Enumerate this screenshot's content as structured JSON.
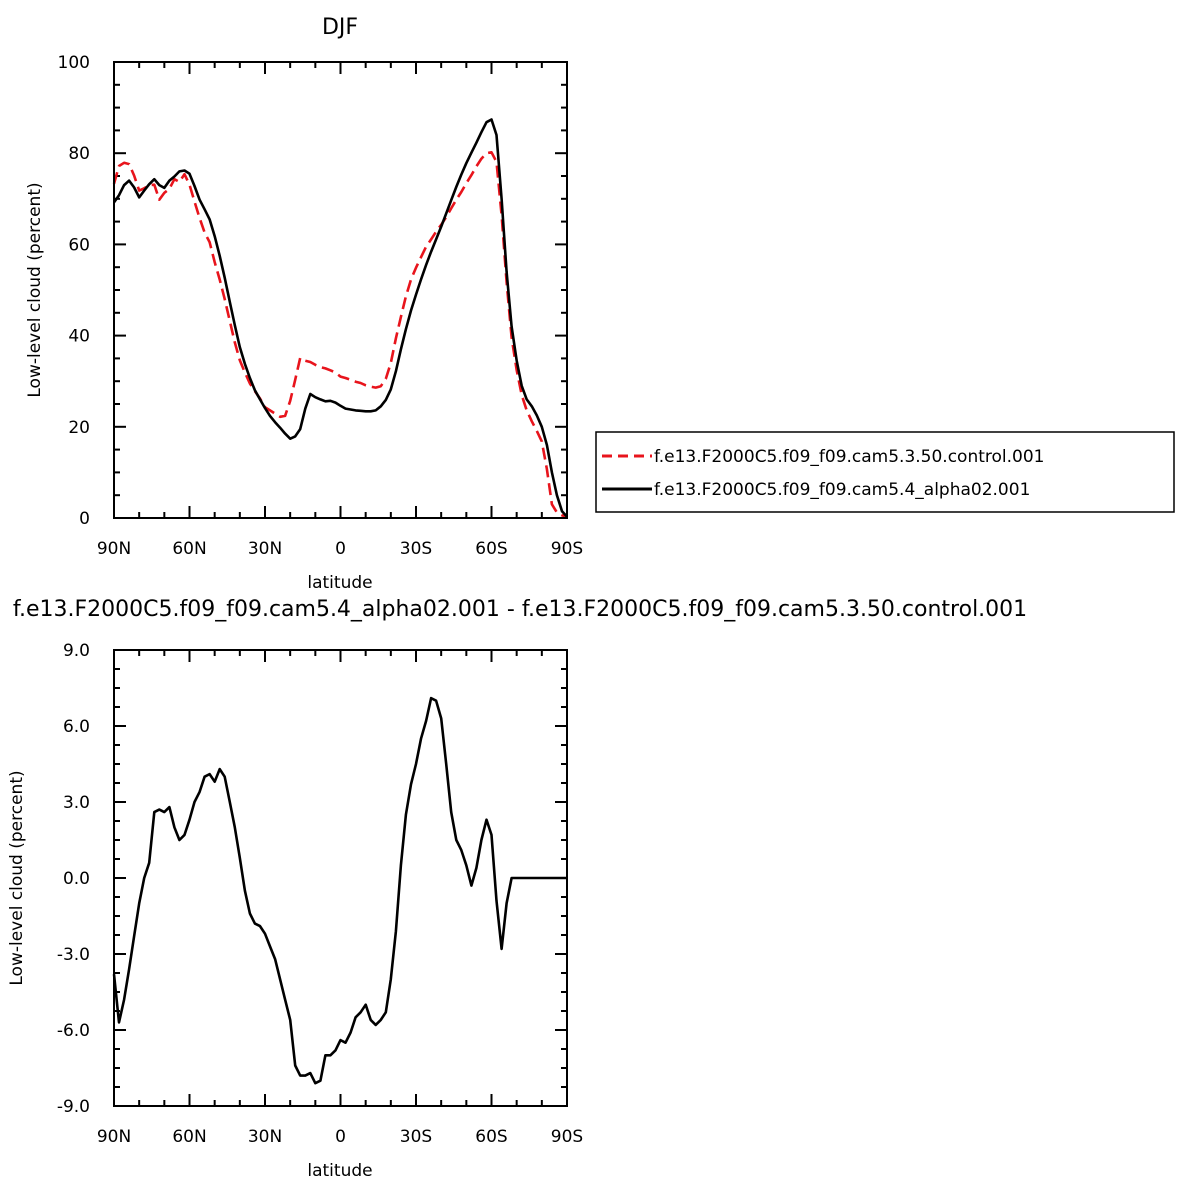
{
  "chart_data": [
    {
      "type": "line",
      "title": "DJF",
      "xlabel": "latitude",
      "ylabel": "Low-level cloud (percent)",
      "xlim": [
        90,
        -90
      ],
      "ylim": [
        0,
        100
      ],
      "xticks": [
        90,
        60,
        30,
        0,
        -30,
        -60,
        -90
      ],
      "xtick_labels": [
        "90N",
        "60N",
        "30N",
        "0",
        "30S",
        "60S",
        "90S"
      ],
      "yticks": [
        0,
        20,
        40,
        60,
        80,
        100
      ],
      "ytick_labels": [
        "0",
        "20",
        "40",
        "60",
        "80",
        "100"
      ],
      "legend": "right",
      "series": [
        {
          "name": "f.e13.F2000C5.f09_f09.cam5.3.50.control.001",
          "color": "#e8141c",
          "dash": "dashed",
          "x": [
            90,
            88,
            86,
            84,
            82,
            80,
            78,
            76,
            74,
            72,
            70,
            68,
            66,
            64,
            62,
            60,
            58,
            56,
            54,
            52,
            50,
            48,
            46,
            44,
            42,
            40,
            38,
            36,
            34,
            32,
            30,
            28,
            26,
            24,
            22,
            20,
            18,
            16,
            14,
            12,
            10,
            8,
            6,
            4,
            2,
            0,
            -2,
            -4,
            -6,
            -8,
            -10,
            -12,
            -14,
            -16,
            -18,
            -20,
            -22,
            -24,
            -26,
            -28,
            -30,
            -32,
            -34,
            -36,
            -38,
            -40,
            -42,
            -44,
            -46,
            -48,
            -50,
            -52,
            -54,
            -56,
            -58,
            -60,
            -62,
            -64,
            -66,
            -68,
            -70,
            -72,
            -74,
            -76,
            -78,
            -80,
            -82,
            -84,
            -86,
            -88,
            -90
          ],
          "y": [
            73.3,
            77.2,
            77.9,
            77.6,
            75.1,
            71.8,
            72.3,
            73.0,
            73.1,
            69.8,
            71.3,
            72.2,
            74.3,
            73.7,
            75.4,
            73.1,
            69.4,
            65.8,
            62.6,
            60.5,
            56.1,
            52.3,
            48.0,
            43.2,
            38.5,
            34.6,
            31.9,
            29.5,
            27.8,
            26.2,
            24.3,
            23.6,
            22.9,
            22.2,
            22.4,
            25.7,
            30.3,
            35.1,
            34.5,
            34.2,
            33.6,
            33.1,
            32.8,
            32.4,
            31.9,
            31.0,
            30.7,
            30.3,
            29.9,
            29.6,
            29.1,
            28.8,
            28.6,
            28.9,
            30.5,
            34.0,
            39.4,
            44.1,
            48.6,
            52.3,
            54.9,
            57.2,
            59.5,
            61.1,
            62.8,
            64.3,
            66.0,
            67.9,
            69.8,
            71.5,
            73.4,
            75.2,
            77.1,
            78.8,
            80.0,
            80.2,
            78.1,
            66.4,
            51.7,
            39.6,
            32.4,
            27.0,
            23.6,
            21.2,
            19.1,
            16.8,
            10.7,
            3.0,
            1.2,
            0.6,
            0.2
          ]
        },
        {
          "name": "f.e13.F2000C5.f09_f09.cam5.4_alpha02.001",
          "color": "#000000",
          "dash": "solid",
          "x": [
            90,
            88,
            86,
            84,
            82,
            80,
            78,
            76,
            74,
            72,
            70,
            68,
            66,
            64,
            62,
            60,
            58,
            56,
            54,
            52,
            50,
            48,
            46,
            44,
            42,
            40,
            38,
            36,
            34,
            32,
            30,
            28,
            26,
            24,
            22,
            20,
            18,
            16,
            14,
            12,
            10,
            8,
            6,
            4,
            2,
            0,
            -2,
            -4,
            -6,
            -8,
            -10,
            -12,
            -14,
            -16,
            -18,
            -20,
            -22,
            -24,
            -26,
            -28,
            -30,
            -32,
            -34,
            -36,
            -38,
            -40,
            -42,
            -44,
            -46,
            -48,
            -50,
            -52,
            -54,
            -56,
            -58,
            -60,
            -62,
            -64,
            -66,
            -68,
            -70,
            -72,
            -74,
            -76,
            -78,
            -80,
            -82,
            -84,
            -86,
            -88,
            -90
          ],
          "y": [
            69.2,
            70.8,
            73.0,
            74.0,
            72.5,
            70.3,
            71.8,
            73.2,
            74.3,
            73.0,
            72.4,
            74.0,
            74.9,
            76.0,
            76.2,
            75.5,
            72.8,
            69.8,
            67.7,
            65.5,
            61.8,
            57.5,
            52.7,
            47.4,
            42.3,
            37.5,
            33.8,
            30.7,
            28.0,
            26.0,
            24.1,
            22.4,
            21.0,
            19.8,
            18.5,
            17.4,
            17.9,
            19.5,
            24.0,
            27.2,
            26.5,
            26.0,
            25.6,
            25.7,
            25.3,
            24.6,
            24.0,
            23.8,
            23.6,
            23.5,
            23.4,
            23.4,
            23.6,
            24.5,
            25.9,
            28.2,
            32.2,
            37.0,
            41.4,
            45.5,
            49.0,
            52.3,
            55.5,
            58.4,
            61.1,
            63.9,
            66.8,
            69.7,
            72.6,
            75.3,
            77.8,
            80.1,
            82.3,
            84.6,
            86.8,
            87.4,
            84.0,
            70.0,
            54.0,
            42.0,
            34.5,
            29.0,
            26.0,
            24.5,
            22.5,
            20.0,
            16.0,
            10.0,
            5.0,
            1.5,
            0.3
          ]
        }
      ]
    },
    {
      "type": "line",
      "title": "f.e13.F2000C5.f09_f09.cam5.4_alpha02.001 - f.e13.F2000C5.f09_f09.cam5.3.50.control.001",
      "xlabel": "latitude",
      "ylabel": "Low-level cloud (percent)",
      "xlim": [
        90,
        -90
      ],
      "ylim": [
        -9.0,
        9.0
      ],
      "xticks": [
        90,
        60,
        30,
        0,
        -30,
        -60,
        -90
      ],
      "xtick_labels": [
        "90N",
        "60N",
        "30N",
        "0",
        "30S",
        "60S",
        "90S"
      ],
      "yticks": [
        -9.0,
        -6.0,
        -3.0,
        0.0,
        3.0,
        6.0,
        9.0
      ],
      "ytick_labels": [
        "-9.0",
        "-6.0",
        "-3.0",
        "0.0",
        "3.0",
        "6.0",
        "9.0"
      ],
      "series": [
        {
          "color": "#000000",
          "dash": "solid",
          "x": [
            90,
            88,
            86,
            84,
            82,
            80,
            78,
            76,
            74,
            72,
            70,
            68,
            66,
            64,
            62,
            60,
            58,
            56,
            54,
            52,
            50,
            48,
            46,
            44,
            42,
            40,
            38,
            36,
            34,
            32,
            30,
            28,
            26,
            24,
            22,
            20,
            18,
            16,
            14,
            12,
            10,
            8,
            6,
            4,
            2,
            0,
            -2,
            -4,
            -6,
            -8,
            -10,
            -12,
            -14,
            -16,
            -18,
            -20,
            -22,
            -24,
            -26,
            -28,
            -30,
            -32,
            -34,
            -36,
            -38,
            -40,
            -42,
            -44,
            -46,
            -48,
            -50,
            -52,
            -54,
            -56,
            -58,
            -60,
            -62,
            -64,
            -66,
            -68,
            -70,
            -72,
            -74,
            -76,
            -78,
            -80,
            -82,
            -84,
            -86,
            -88,
            -90
          ],
          "y": [
            -3.8,
            -5.7,
            -4.8,
            -3.6,
            -2.3,
            -1.0,
            0.0,
            0.6,
            2.6,
            2.7,
            2.6,
            2.8,
            2.0,
            1.5,
            1.7,
            2.3,
            3.0,
            3.4,
            4.0,
            4.1,
            3.8,
            4.3,
            4.0,
            3.0,
            2.0,
            0.8,
            -0.5,
            -1.4,
            -1.8,
            -1.9,
            -2.2,
            -2.7,
            -3.2,
            -4.0,
            -4.8,
            -5.6,
            -7.4,
            -7.8,
            -7.8,
            -7.7,
            -8.1,
            -8.0,
            -7.0,
            -7.0,
            -6.8,
            -6.4,
            -6.5,
            -6.1,
            -5.5,
            -5.3,
            -5.0,
            -5.6,
            -5.8,
            -5.6,
            -5.3,
            -4.0,
            -2.1,
            0.5,
            2.5,
            3.7,
            4.5,
            5.5,
            6.2,
            7.1,
            7.0,
            6.3,
            4.5,
            2.6,
            1.5,
            1.1,
            0.5,
            -0.3,
            0.4,
            1.5,
            2.3,
            1.7,
            -0.9,
            -2.8,
            -1.0,
            0.0,
            0.0,
            0.0,
            0.0,
            0.0,
            0.0,
            0.0,
            0.0,
            0.0,
            0.0,
            0.0,
            0.0
          ]
        }
      ]
    }
  ]
}
